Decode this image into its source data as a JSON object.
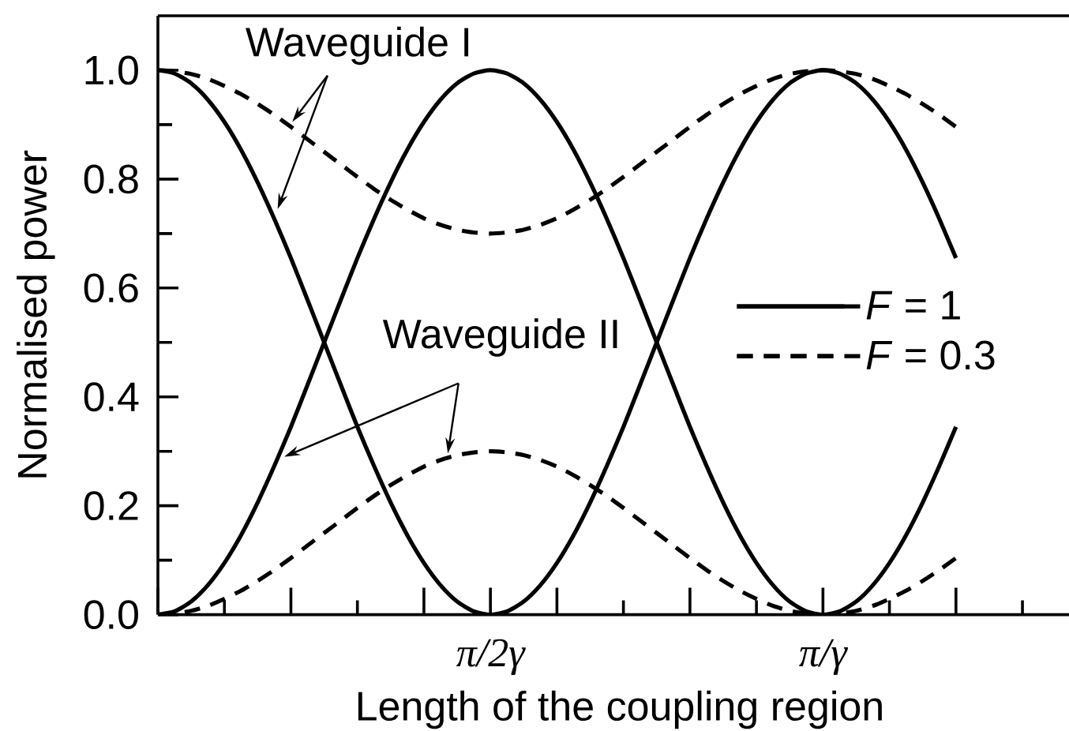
{
  "chart_data": {
    "type": "line",
    "xlabel": "Length of the coupling region",
    "ylabel": "Normalised power",
    "categories": [
      null,
      null,
      null,
      null,
      null,
      null,
      null,
      null,
      null,
      null,
      null,
      null,
      null,
      null,
      null,
      null,
      null,
      null,
      null,
      null,
      "π/2γ",
      null,
      null,
      null,
      null,
      null,
      null,
      null,
      null,
      null,
      null,
      null,
      null,
      null,
      null,
      null,
      null,
      null,
      null,
      null,
      "π/γ",
      null,
      null,
      null,
      null,
      null,
      null,
      null,
      null
    ],
    "series": [
      {
        "name": "*F* = 1",
        "color": "#000000",
        "line_style": "solid",
        "values": [
          1.0,
          0.994,
          0.976,
          0.946,
          0.905,
          0.854,
          0.794,
          0.727,
          0.655,
          0.578,
          0.5,
          0.422,
          0.345,
          0.273,
          0.206,
          0.146,
          0.095,
          0.054,
          0.024,
          0.006,
          0.0,
          0.006,
          0.024,
          0.054,
          0.095,
          0.146,
          0.206,
          0.273,
          0.345,
          0.422,
          0.5,
          0.578,
          0.655,
          0.727,
          0.794,
          0.854,
          0.905,
          0.946,
          0.976,
          0.994,
          1.0,
          0.994,
          0.976,
          0.946,
          0.905,
          0.854,
          0.794,
          0.727,
          0.655
        ]
      },
      {
        "color": "#000000",
        "line_style": "solid",
        "values": [
          0.0,
          0.006,
          0.024,
          0.054,
          0.095,
          0.146,
          0.206,
          0.273,
          0.345,
          0.422,
          0.5,
          0.578,
          0.655,
          0.727,
          0.794,
          0.854,
          0.905,
          0.946,
          0.976,
          0.994,
          1.0,
          0.994,
          0.976,
          0.946,
          0.905,
          0.854,
          0.794,
          0.727,
          0.655,
          0.578,
          0.5,
          0.422,
          0.345,
          0.273,
          0.206,
          0.146,
          0.095,
          0.054,
          0.024,
          0.006,
          0.0,
          0.006,
          0.024,
          0.054,
          0.095,
          0.146,
          0.206,
          0.273,
          0.345
        ]
      },
      {
        "name": "*F* = 0.3",
        "color": "#000000",
        "line_style": "dashed",
        "values": [
          1.0,
          0.998,
          0.993,
          0.984,
          0.971,
          0.956,
          0.938,
          0.918,
          0.896,
          0.873,
          0.85,
          0.827,
          0.804,
          0.782,
          0.762,
          0.744,
          0.728,
          0.716,
          0.707,
          0.702,
          0.7,
          0.702,
          0.707,
          0.716,
          0.728,
          0.744,
          0.762,
          0.782,
          0.804,
          0.827,
          0.85,
          0.873,
          0.896,
          0.918,
          0.938,
          0.956,
          0.971,
          0.984,
          0.993,
          0.998,
          1.0,
          0.998,
          0.993,
          0.984,
          0.971,
          0.956,
          0.938,
          0.918,
          0.896
        ]
      },
      {
        "color": "#000000",
        "line_style": "dashed",
        "values": [
          0.0,
          0.002,
          0.007,
          0.016,
          0.029,
          0.044,
          0.062,
          0.082,
          0.104,
          0.127,
          0.15,
          0.173,
          0.196,
          0.218,
          0.238,
          0.256,
          0.272,
          0.284,
          0.293,
          0.298,
          0.3,
          0.298,
          0.293,
          0.284,
          0.272,
          0.256,
          0.238,
          0.218,
          0.196,
          0.173,
          0.15,
          0.127,
          0.104,
          0.082,
          0.062,
          0.044,
          0.029,
          0.016,
          0.007,
          0.002,
          0.0,
          0.002,
          0.007,
          0.016,
          0.029,
          0.044,
          0.062,
          0.082,
          0.104
        ]
      }
    ],
    "ylim": [
      0,
      1.1
    ],
    "yticks": [
      {
        "value": 0,
        "label": "0.0"
      },
      {
        "value": 0.1,
        "label": null
      },
      0.2,
      {
        "value": 0.3,
        "label": null
      },
      0.4,
      {
        "value": 0.5,
        "label": null
      },
      0.6,
      {
        "value": 0.7,
        "label": null
      },
      0.8,
      {
        "value": 0.9,
        "label": null
      },
      {
        "value": 1.0,
        "label": "1.0"
      }
    ],
    "legend": "right",
    "annotations": [
      "Waveguide I",
      "Waveguide II"
    ]
  }
}
